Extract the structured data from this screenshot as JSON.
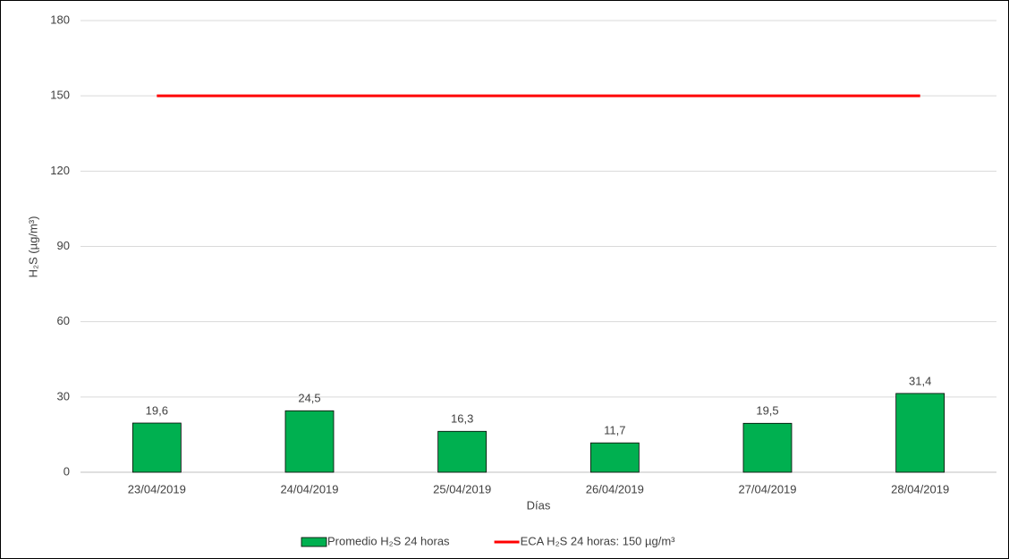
{
  "chart_data": {
    "type": "bar",
    "ylabel": "H₂S (µg/m³)",
    "xlabel": "Días",
    "categories": [
      "23/04/2019",
      "24/04/2019",
      "25/04/2019",
      "26/04/2019",
      "27/04/2019",
      "28/04/2019"
    ],
    "series": [
      {
        "name": "Promedio H₂S 24 horas",
        "type": "bar",
        "color": "#00b050",
        "values": [
          19.6,
          24.5,
          16.3,
          11.7,
          19.5,
          31.4
        ],
        "value_labels": [
          "19,6",
          "24,5",
          "16,3",
          "11,7",
          "19,5",
          "31,4"
        ]
      },
      {
        "name": "ECA H₂S 24 horas: 150 µg/m³",
        "type": "line",
        "color": "#ff0000",
        "values": [
          150,
          150,
          150,
          150,
          150,
          150
        ]
      }
    ],
    "ylim": [
      0,
      180
    ],
    "yticks": [
      0,
      30,
      60,
      90,
      120,
      150,
      180
    ],
    "grid": true,
    "legend": "bottom"
  }
}
